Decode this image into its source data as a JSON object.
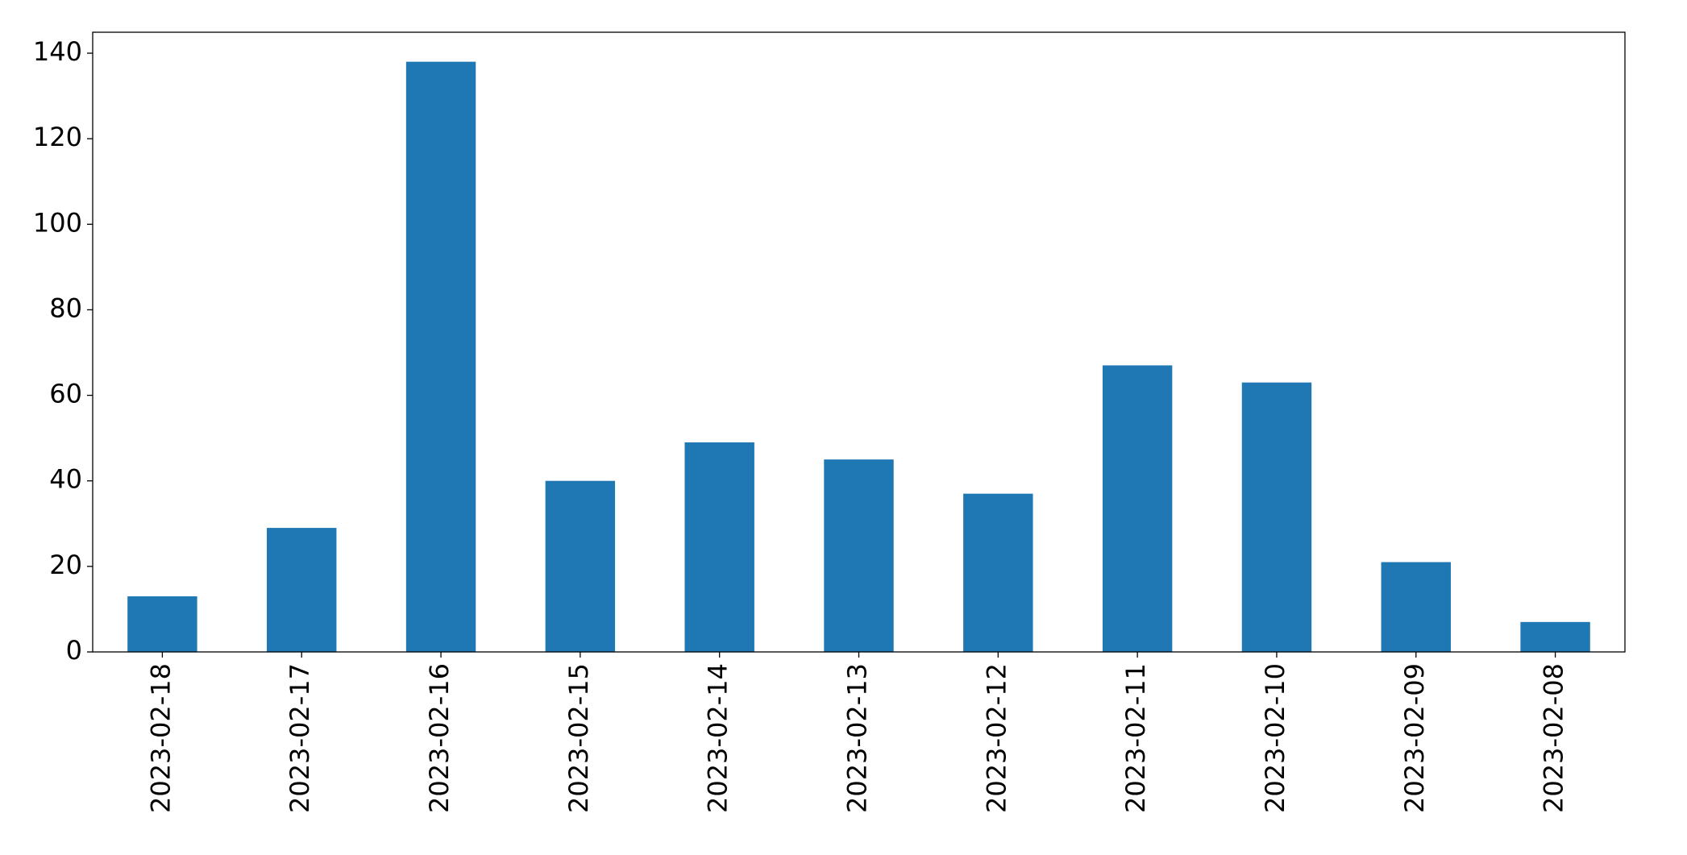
{
  "chart_data": {
    "type": "bar",
    "categories": [
      "2023-02-18",
      "2023-02-17",
      "2023-02-16",
      "2023-02-15",
      "2023-02-14",
      "2023-02-13",
      "2023-02-12",
      "2023-02-11",
      "2023-02-10",
      "2023-02-09",
      "2023-02-08"
    ],
    "values": [
      13,
      29,
      138,
      40,
      49,
      45,
      37,
      67,
      63,
      21,
      7
    ],
    "color": "#1f77b4",
    "ylim": [
      0,
      144.9
    ],
    "yticks": [
      0,
      20,
      40,
      60,
      80,
      100,
      120,
      140
    ],
    "grid": false
  }
}
